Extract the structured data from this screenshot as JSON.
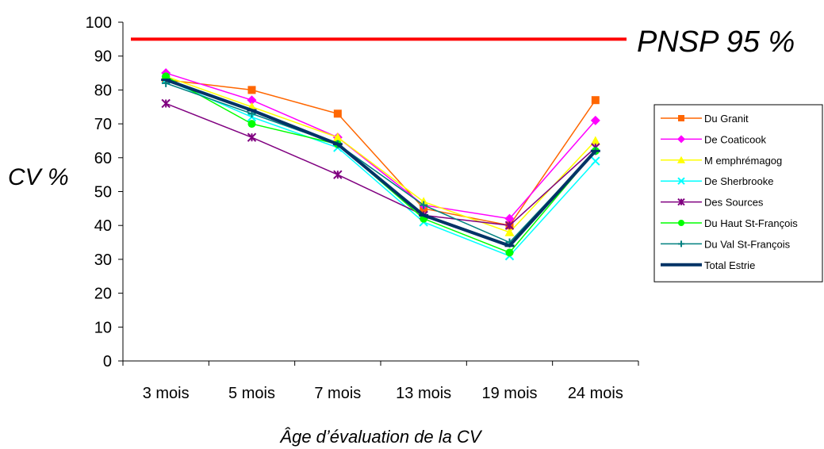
{
  "chart_data": {
    "type": "line",
    "title": "",
    "xlabel": "Âge d’évaluation de la CV",
    "ylabel": "CV %",
    "ylim": [
      0,
      100
    ],
    "yticks": [
      0,
      10,
      20,
      30,
      40,
      50,
      60,
      70,
      80,
      90,
      100
    ],
    "categories": [
      "3 mois",
      "5 mois",
      "7 mois",
      "13 mois",
      "19 mois",
      "24 mois"
    ],
    "grid": false,
    "legend_position": "right",
    "reference_line": {
      "label": "PNSP 95 %",
      "value": 95,
      "color": "#ff0000"
    },
    "series": [
      {
        "name": "Du Granit",
        "values": [
          83,
          80,
          73,
          45,
          40,
          77
        ],
        "color": "#ff6600",
        "marker": "square"
      },
      {
        "name": "De Coaticook",
        "values": [
          85,
          77,
          66,
          46,
          42,
          71
        ],
        "color": "#ff00ff",
        "marker": "diamond"
      },
      {
        "name": "M emphrémagog",
        "values": [
          84,
          75,
          66,
          47,
          38,
          65
        ],
        "color": "#ffff00",
        "marker": "triangle"
      },
      {
        "name": "De Sherbrooke",
        "values": [
          83,
          72,
          63,
          41,
          31,
          59
        ],
        "color": "#00ffff",
        "marker": "x"
      },
      {
        "name": "Des Sources",
        "values": [
          76,
          66,
          55,
          43,
          40,
          63
        ],
        "color": "#800080",
        "marker": "star"
      },
      {
        "name": "Du Haut St-François",
        "values": [
          84,
          70,
          64,
          42,
          32,
          62
        ],
        "color": "#00ff00",
        "marker": "circle"
      },
      {
        "name": "Du Val St-François",
        "values": [
          82,
          73,
          64,
          46,
          35,
          62
        ],
        "color": "#008080",
        "marker": "plus"
      },
      {
        "name": "Total Estrie",
        "values": [
          83,
          74,
          64,
          43,
          34,
          62
        ],
        "color": "#003366",
        "marker": "dash"
      }
    ]
  }
}
